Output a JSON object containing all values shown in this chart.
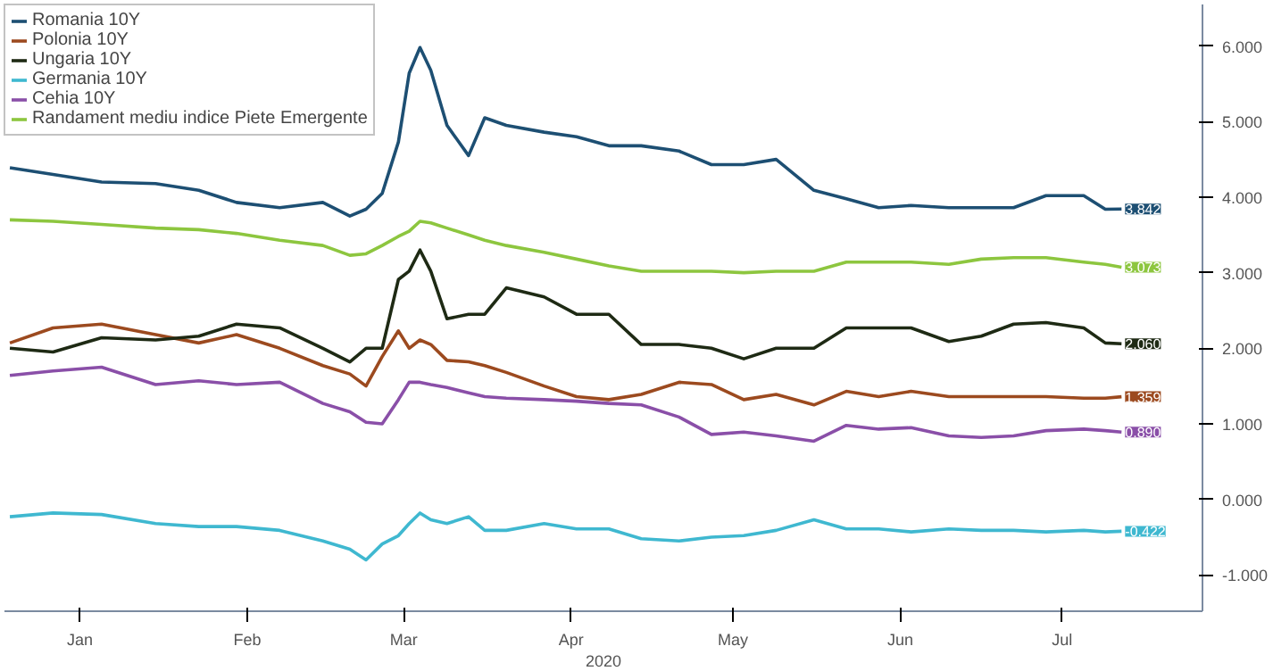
{
  "chart_data": {
    "type": "line",
    "x": [
      "2020-01-02",
      "2020-01-10",
      "2020-01-19",
      "2020-01-29",
      "2020-02-06",
      "2020-02-13",
      "2020-02-21",
      "2020-02-29",
      "2020-03-05",
      "2020-03-08",
      "2020-03-11",
      "2020-03-14",
      "2020-03-16",
      "2020-03-18",
      "2020-03-20",
      "2020-03-23",
      "2020-03-27",
      "2020-03-30",
      "2020-04-03",
      "2020-04-10",
      "2020-04-16",
      "2020-04-22",
      "2020-04-28",
      "2020-05-05",
      "2020-05-11",
      "2020-05-17",
      "2020-05-23",
      "2020-05-30",
      "2020-06-05",
      "2020-06-11",
      "2020-06-17",
      "2020-06-24",
      "2020-06-30",
      "2020-07-06",
      "2020-07-12",
      "2020-07-19",
      "2020-07-23",
      "2020-07-26"
    ],
    "series": [
      {
        "name": "Romania 10Y",
        "color": "#1d4f73",
        "values": [
          4.39,
          4.3,
          4.2,
          4.18,
          4.09,
          3.93,
          3.86,
          3.93,
          3.75,
          3.84,
          4.05,
          4.73,
          5.64,
          5.98,
          5.68,
          4.95,
          4.55,
          5.05,
          4.95,
          4.86,
          4.8,
          4.68,
          4.68,
          4.61,
          4.43,
          4.43,
          4.5,
          4.09,
          3.98,
          3.86,
          3.89,
          3.86,
          3.86,
          3.86,
          4.02,
          4.02,
          3.84,
          3.842
        ]
      },
      {
        "name": "Polonia 10Y",
        "color": "#9c4a1f",
        "values": [
          2.07,
          2.27,
          2.32,
          2.18,
          2.07,
          2.18,
          2.0,
          1.77,
          1.66,
          1.5,
          1.89,
          2.23,
          2.0,
          2.11,
          2.05,
          1.84,
          1.82,
          1.77,
          1.68,
          1.5,
          1.36,
          1.32,
          1.39,
          1.55,
          1.52,
          1.32,
          1.39,
          1.25,
          1.43,
          1.36,
          1.43,
          1.36,
          1.36,
          1.36,
          1.36,
          1.34,
          1.34,
          1.359
        ]
      },
      {
        "name": "Ungaria 10Y",
        "color": "#1e2a14",
        "values": [
          2.0,
          1.95,
          2.14,
          2.11,
          2.16,
          2.32,
          2.27,
          2.0,
          1.82,
          2.0,
          2.0,
          2.91,
          3.02,
          3.3,
          3.02,
          2.39,
          2.45,
          2.45,
          2.8,
          2.68,
          2.45,
          2.45,
          2.05,
          2.05,
          2.0,
          1.86,
          2.0,
          2.0,
          2.27,
          2.27,
          2.27,
          2.09,
          2.16,
          2.32,
          2.34,
          2.27,
          2.07,
          2.06
        ]
      },
      {
        "name": "Germania 10Y",
        "color": "#3fb8d0",
        "values": [
          -0.23,
          -0.18,
          -0.2,
          -0.32,
          -0.36,
          -0.36,
          -0.41,
          -0.55,
          -0.66,
          -0.8,
          -0.59,
          -0.48,
          -0.32,
          -0.18,
          -0.27,
          -0.32,
          -0.23,
          -0.41,
          -0.41,
          -0.32,
          -0.39,
          -0.39,
          -0.52,
          -0.55,
          -0.5,
          -0.48,
          -0.41,
          -0.27,
          -0.39,
          -0.39,
          -0.43,
          -0.39,
          -0.41,
          -0.41,
          -0.43,
          -0.41,
          -0.43,
          -0.422
        ]
      },
      {
        "name": "Cehia 10Y",
        "color": "#8a4fa8",
        "values": [
          1.64,
          1.7,
          1.75,
          1.52,
          1.57,
          1.52,
          1.55,
          1.27,
          1.16,
          1.02,
          1.0,
          1.32,
          1.55,
          1.55,
          1.52,
          1.48,
          1.41,
          1.36,
          1.34,
          1.32,
          1.3,
          1.27,
          1.25,
          1.09,
          0.86,
          0.89,
          0.84,
          0.77,
          0.98,
          0.93,
          0.95,
          0.84,
          0.82,
          0.84,
          0.91,
          0.93,
          0.91,
          0.89
        ]
      },
      {
        "name": "Randament mediu indice Piete Emergente",
        "color": "#8dc63f",
        "values": [
          3.7,
          3.68,
          3.64,
          3.59,
          3.57,
          3.52,
          3.43,
          3.36,
          3.23,
          3.25,
          3.36,
          3.48,
          3.55,
          3.68,
          3.66,
          3.59,
          3.5,
          3.43,
          3.36,
          3.27,
          3.18,
          3.09,
          3.02,
          3.02,
          3.02,
          3.0,
          3.02,
          3.02,
          3.14,
          3.14,
          3.14,
          3.11,
          3.18,
          3.2,
          3.2,
          3.14,
          3.11,
          3.073
        ]
      }
    ],
    "xlabel": "2020",
    "xlim": [
      "2020-01-01",
      "2020-08-10"
    ],
    "xticks": [
      {
        "value": "2020-01-15",
        "label": "Jan"
      },
      {
        "value": "2020-02-15",
        "label": "Feb"
      },
      {
        "value": "2020-03-15",
        "label": "Mar"
      },
      {
        "value": "2020-04-15",
        "label": "Apr"
      },
      {
        "value": "2020-05-15",
        "label": "May"
      },
      {
        "value": "2020-06-15",
        "label": "Jun"
      },
      {
        "value": "2020-07-15",
        "label": "Jul"
      }
    ],
    "ylim": [
      -1.48,
      6.55
    ],
    "yticks": [
      {
        "value": -1,
        "label": "-1.000"
      },
      {
        "value": 0,
        "label": "0.000"
      },
      {
        "value": 1,
        "label": "1.000"
      },
      {
        "value": 2,
        "label": "2.000"
      },
      {
        "value": 3,
        "label": "3.000"
      },
      {
        "value": 4,
        "label": "4.000"
      },
      {
        "value": 5,
        "label": "5.000"
      },
      {
        "value": 6,
        "label": "6.000"
      }
    ],
    "annotations": [
      {
        "text": "3.842",
        "x": "2020-07-26",
        "y": 3.842
      },
      {
        "text": "1.359",
        "x": "2020-07-26",
        "y": 1.359
      },
      {
        "text": "2.060",
        "x": "2020-07-26",
        "y": 2.06
      },
      {
        "text": "-0.422",
        "x": "2020-07-26",
        "y": -0.422
      },
      {
        "text": "0.890",
        "x": "2020-07-26",
        "y": 0.89
      },
      {
        "text": "3.073",
        "x": "2020-07-26",
        "y": 3.073
      }
    ],
    "legend": "top left",
    "grid": false,
    "line_style": "solid"
  }
}
